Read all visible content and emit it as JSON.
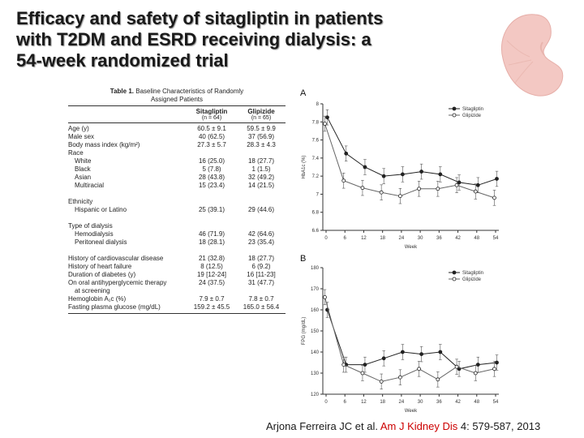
{
  "title": {
    "line1": "Efficacy and safety of sitagliptin in patients",
    "line2": "with T2DM and ESRD receiving dialysis: a",
    "line3": "54-week randomized trial"
  },
  "table": {
    "caption_bold": "Table 1.",
    "caption_text1": "Baseline Characteristics of Randomly",
    "caption_text2": "Assigned Patients",
    "col1": "Sitagliptin",
    "col1_n": "(n = 64)",
    "col2": "Glipizide",
    "col2_n": "(n = 65)",
    "rows": [
      {
        "label": "Age (y)",
        "v1": "60.5 ± 9.1",
        "v2": "59.5 ± 9.9",
        "indent": false
      },
      {
        "label": "Male sex",
        "v1": "40 (62.5)",
        "v2": "37 (56.9)",
        "indent": false
      },
      {
        "label": "Body mass index (kg/m²)",
        "v1": "27.3 ± 5.7",
        "v2": "28.3 ± 4.3",
        "indent": false
      },
      {
        "label": "Race",
        "v1": "",
        "v2": "",
        "indent": false
      },
      {
        "label": "White",
        "v1": "16 (25.0)",
        "v2": "18 (27.7)",
        "indent": true
      },
      {
        "label": "Black",
        "v1": "5 (7.8)",
        "v2": "1 (1.5)",
        "indent": true
      },
      {
        "label": "Asian",
        "v1": "28 (43.8)",
        "v2": "32 (49.2)",
        "indent": true
      },
      {
        "label": "Multiracial",
        "v1": "15 (23.4)",
        "v2": "14 (21.5)",
        "indent": true
      },
      {
        "label": "",
        "v1": "",
        "v2": "",
        "indent": false
      },
      {
        "label": "Ethnicity",
        "v1": "",
        "v2": "",
        "indent": false
      },
      {
        "label": "Hispanic or Latino",
        "v1": "25 (39.1)",
        "v2": "29 (44.6)",
        "indent": true
      },
      {
        "label": "",
        "v1": "",
        "v2": "",
        "indent": false
      },
      {
        "label": "Type of dialysis",
        "v1": "",
        "v2": "",
        "indent": false
      },
      {
        "label": "Hemodialysis",
        "v1": "46 (71.9)",
        "v2": "42 (64.6)",
        "indent": true
      },
      {
        "label": "Peritoneal dialysis",
        "v1": "18 (28.1)",
        "v2": "23 (35.4)",
        "indent": true
      },
      {
        "label": "",
        "v1": "",
        "v2": "",
        "indent": false
      },
      {
        "label": "History of cardiovascular disease",
        "v1": "21 (32.8)",
        "v2": "18 (27.7)",
        "indent": false
      },
      {
        "label": "History of heart failure",
        "v1": "8 (12.5)",
        "v2": "6 (9.2)",
        "indent": false
      },
      {
        "label": "Duration of diabetes (y)",
        "v1": "19 [12-24]",
        "v2": "16 [11-23]",
        "indent": false
      },
      {
        "label": "On oral antihyperglycemic therapy",
        "v1": "24 (37.5)",
        "v2": "31 (47.7)",
        "indent": false
      },
      {
        "label": "at screening",
        "v1": "",
        "v2": "",
        "indent": true
      },
      {
        "label": "Hemoglobin A₁c (%)",
        "v1": "7.9 ± 0.7",
        "v2": "7.8 ± 0.7",
        "indent": false
      },
      {
        "label": "Fasting plasma glucose (mg/dL)",
        "v1": "159.2 ± 45.5",
        "v2": "165.0 ± 56.4",
        "indent": false
      }
    ]
  },
  "chart_data": [
    {
      "type": "line",
      "panel_label": "A",
      "xlabel": "Week",
      "ylabel": "HbA1c (%)",
      "x": [
        0,
        6,
        12,
        18,
        24,
        30,
        36,
        42,
        48,
        54
      ],
      "ylim": [
        6.6,
        8.0
      ],
      "yticks": [
        6.6,
        6.8,
        7.0,
        7.2,
        7.4,
        7.6,
        7.8,
        8.0
      ],
      "series": [
        {
          "name": "Sitagliptin",
          "marker": "filled",
          "values": [
            7.85,
            7.45,
            7.3,
            7.2,
            7.22,
            7.25,
            7.22,
            7.13,
            7.1,
            7.17
          ]
        },
        {
          "name": "Glipizide",
          "marker": "open",
          "values": [
            7.78,
            7.15,
            7.07,
            7.02,
            6.98,
            7.06,
            7.06,
            7.1,
            7.03,
            6.96
          ]
        }
      ]
    },
    {
      "type": "line",
      "panel_label": "B",
      "xlabel": "Week",
      "ylabel": "FPG (mg/dL)",
      "x": [
        0,
        6,
        12,
        18,
        24,
        30,
        36,
        42,
        48,
        54
      ],
      "ylim": [
        120,
        180
      ],
      "yticks": [
        120,
        130,
        140,
        150,
        160,
        170,
        180
      ],
      "series": [
        {
          "name": "Sitagliptin",
          "marker": "filled",
          "values": [
            160,
            134,
            134,
            137,
            140,
            139,
            140,
            132,
            134,
            135
          ]
        },
        {
          "name": "Glipizide",
          "marker": "open",
          "values": [
            166,
            134,
            130,
            126,
            128,
            132,
            127,
            133,
            130,
            132
          ]
        }
      ]
    }
  ],
  "citation": {
    "authors": "Arjona Ferreira JC et al. ",
    "journal": "Am J Kidney Dis",
    "details": " 4: 579-587, 2013"
  },
  "colors": {
    "title_text": "#1a1a1a",
    "journal_red": "#cc0000",
    "kidney": "#f3c8c3"
  }
}
